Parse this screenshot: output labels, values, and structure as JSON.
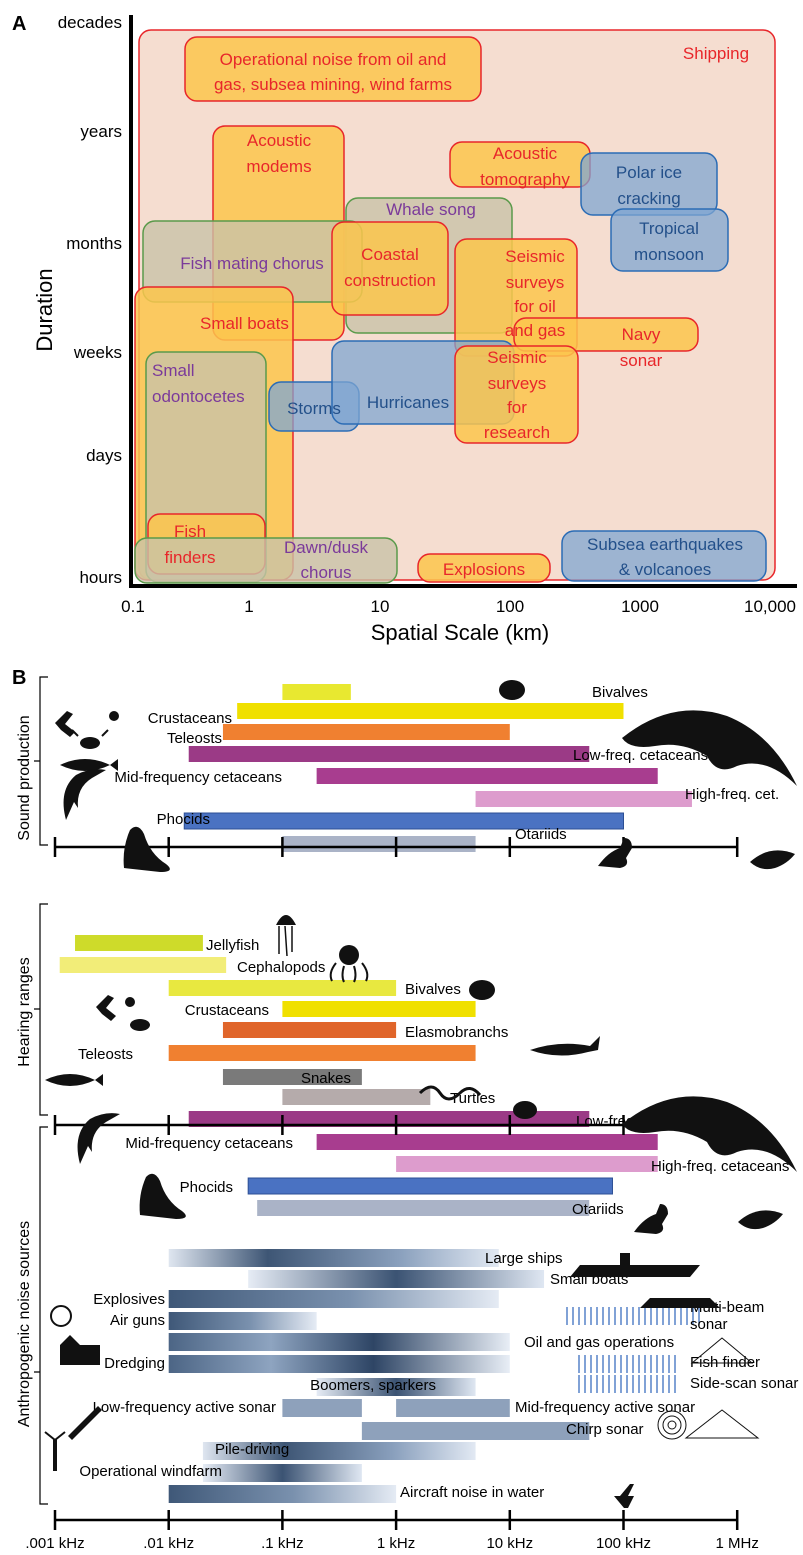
{
  "panel_a": {
    "letter": "A",
    "chart_data": {
      "type": "scatter",
      "title": "",
      "xlabel": "Spatial Scale (km)",
      "ylabel": "Duration",
      "x_scale": "log",
      "x_ticks": [
        "0.1",
        "1",
        "10",
        "100",
        "1000",
        "10,000"
      ],
      "y_ticks": [
        "hours",
        "days",
        "weeks",
        "months",
        "years",
        "decades"
      ],
      "regions": [
        {
          "label": "Shipping",
          "x": [
            0.1,
            10000
          ],
          "y": [
            "hours",
            "decades"
          ],
          "color": "red"
        },
        {
          "label": "Operational noise from oil and gas, subsea mining, wind farms",
          "color": "red"
        },
        {
          "label": "Acoustic modems",
          "color": "red"
        },
        {
          "label": "Acoustic tomography",
          "color": "red"
        },
        {
          "label": "Polar ice cracking",
          "color": "blue"
        },
        {
          "label": "Tropical monsoon",
          "color": "blue"
        },
        {
          "label": "Whale song",
          "color": "green"
        },
        {
          "label": "Fish mating chorus",
          "color": "green"
        },
        {
          "label": "Coastal construction",
          "color": "red"
        },
        {
          "label": "Seismic surveys for oil and gas",
          "color": "red"
        },
        {
          "label": "Small boats",
          "color": "red"
        },
        {
          "label": "Navy sonar",
          "color": "red"
        },
        {
          "label": "Small odontocetes",
          "color": "green"
        },
        {
          "label": "Storms",
          "color": "blue"
        },
        {
          "label": "Hurricanes",
          "color": "blue"
        },
        {
          "label": "Seismic surveys for research",
          "color": "red"
        },
        {
          "label": "Fish finders",
          "color": "red"
        },
        {
          "label": "Dawn/dusk chorus",
          "color": "green"
        },
        {
          "label": "Explosions",
          "color": "red"
        },
        {
          "label": "Subsea earthquakes & volcanoes",
          "color": "blue"
        }
      ]
    }
  },
  "panel_b": {
    "letter": "B",
    "x_ticks": [
      ".001 kHz",
      ".01 kHz",
      ".1 kHz",
      "1 kHz",
      "10 kHz",
      "100 kHz",
      "1 MHz"
    ],
    "sound_production": {
      "group_label": "Sound production",
      "bars": [
        {
          "label": "Bivalves",
          "range": [
            0.1,
            0.4
          ],
          "color": "#e8e830"
        },
        {
          "label": "Crustaceans",
          "range": [
            0.04,
            100
          ],
          "color": "#f0e000"
        },
        {
          "label": "Teleosts",
          "range": [
            0.03,
            10
          ],
          "color": "#f08030"
        },
        {
          "label": "Low-freq. cetaceans",
          "range": [
            0.015,
            50
          ],
          "color": "#9b3a86"
        },
        {
          "label": "Mid-frequency cetaceans",
          "range": [
            0.2,
            200
          ],
          "color": "#a83d8f"
        },
        {
          "label": "High-freq. cet.",
          "range": [
            5,
            400
          ],
          "color": "#dd9ccd"
        },
        {
          "label": "Phocids",
          "range": [
            0.0137,
            100
          ],
          "color": "#4a72c2"
        },
        {
          "label": "Otariids",
          "range": [
            0.1,
            5
          ],
          "color": "#aab3c7"
        }
      ]
    },
    "hearing": {
      "group_label": "Hearing ranges",
      "bars": [
        {
          "label": "Jellyfish",
          "range": [
            0.0015,
            0.02
          ],
          "color": "#cedb2a"
        },
        {
          "label": "Cephalopods",
          "range": [
            0.0011,
            0.032
          ],
          "color": "#f2ed78"
        },
        {
          "label": "Bivalves",
          "range": [
            0.01,
            1
          ],
          "color": "#e8e840"
        },
        {
          "label": "Crustaceans",
          "range": [
            0.1,
            5
          ],
          "color": "#f0e000"
        },
        {
          "label": "Elasmobranchs",
          "range": [
            0.03,
            1
          ],
          "color": "#e0652a"
        },
        {
          "label": "Teleosts",
          "range": [
            0.01,
            5
          ],
          "color": "#f08030"
        },
        {
          "label": "Snakes",
          "range": [
            0.03,
            0.5
          ],
          "color": "#7a7a7a"
        },
        {
          "label": "Turtles",
          "range": [
            0.1,
            2
          ],
          "color": "#b5abab"
        },
        {
          "label": "Low-freq. cetaceans",
          "range": [
            0.015,
            50
          ],
          "color": "#9b3a86"
        },
        {
          "label": "Mid-frequency cetaceans",
          "range": [
            0.2,
            200
          ],
          "color": "#a83d8f"
        },
        {
          "label": "High-freq. cetaceans",
          "range": [
            1,
            200
          ],
          "color": "#dd9ccd"
        },
        {
          "label": "Phocids",
          "range": [
            0.05,
            80
          ],
          "color": "#4a72c2"
        },
        {
          "label": "Otariids",
          "range": [
            0.06,
            50
          ],
          "color": "#aab3c7"
        }
      ]
    },
    "anthro": {
      "group_label": "Anthropogenic noise sources",
      "bars": [
        {
          "label": "Large ships",
          "range": [
            0.01,
            8
          ]
        },
        {
          "label": "Small boats",
          "range": [
            0.05,
            20
          ]
        },
        {
          "label": "Explosives",
          "range": [
            0.01,
            8
          ]
        },
        {
          "label": "Air guns",
          "range": [
            0.01,
            0.2
          ]
        },
        {
          "label": "Multi-beam sonar",
          "range": [
            30,
            500
          ]
        },
        {
          "label": "Oil and gas operations",
          "range": [
            0.01,
            10
          ]
        },
        {
          "label": "Dredging",
          "range": [
            0.01,
            10
          ]
        },
        {
          "label": "Fish finder",
          "range": [
            38,
            300
          ]
        },
        {
          "label": "Side-scan sonar",
          "range": [
            38,
            300
          ]
        },
        {
          "label": "Boomers, sparkers",
          "range": [
            0.2,
            5
          ]
        },
        {
          "label": "Low-frequency active sonar",
          "range": [
            0.1,
            0.5
          ]
        },
        {
          "label": "Mid-frequency active sonar",
          "range": [
            1,
            10
          ]
        },
        {
          "label": "Chirp sonar",
          "range": [
            0.5,
            50
          ]
        },
        {
          "label": "Pile-driving",
          "range": [
            0.02,
            5
          ]
        },
        {
          "label": "Operational windfarm",
          "range": [
            0.02,
            0.5
          ]
        },
        {
          "label": "Aircraft noise in water",
          "range": [
            0.01,
            1
          ]
        }
      ]
    }
  }
}
